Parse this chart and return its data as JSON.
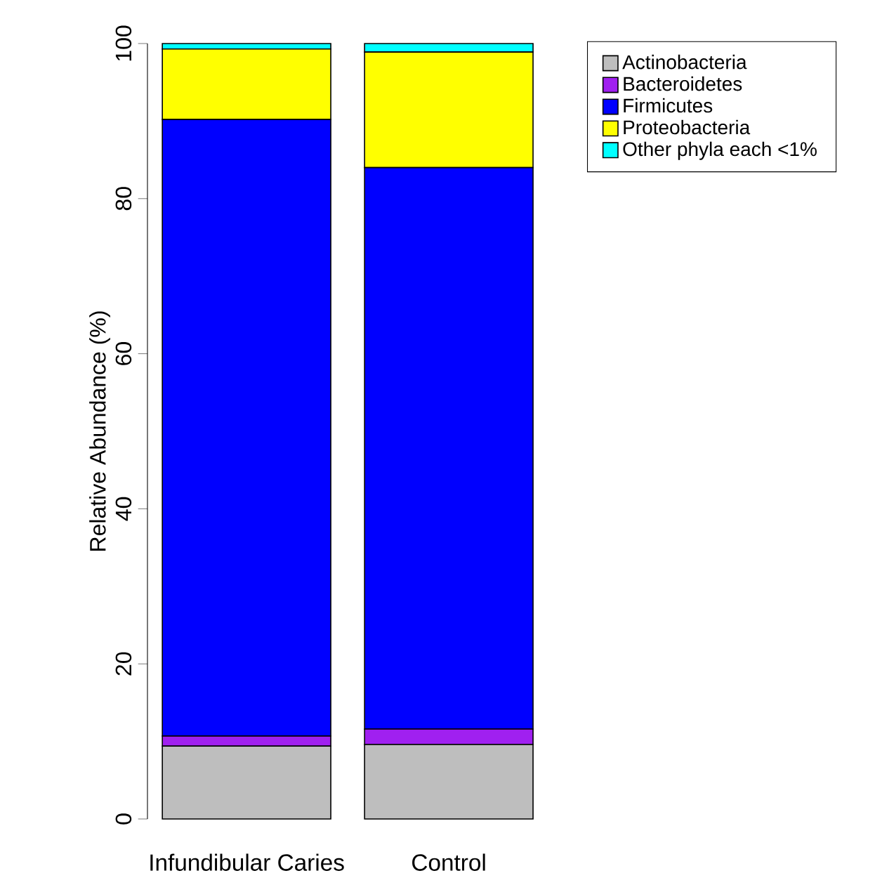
{
  "chart_data": {
    "type": "bar",
    "stacked": true,
    "ylabel": "Relative Abundance (%)",
    "categories": [
      "Infundibular Caries",
      "Control"
    ],
    "series": [
      {
        "name": "Actinobacteria",
        "color": "#bebebe",
        "values": [
          9.4,
          9.6
        ]
      },
      {
        "name": "Bacteroidetes",
        "color": "#a020f0",
        "values": [
          1.3,
          2.0
        ]
      },
      {
        "name": "Firmicutes",
        "color": "#0000ff",
        "values": [
          79.5,
          72.4
        ]
      },
      {
        "name": "Proteobacteria",
        "color": "#ffff00",
        "values": [
          9.1,
          14.9
        ]
      },
      {
        "name": "Other phyla each <1%",
        "color": "#00ffff",
        "values": [
          0.7,
          1.1
        ]
      }
    ],
    "ylim": [
      0,
      100
    ],
    "yticks": [
      0,
      20,
      40,
      60,
      80,
      100
    ],
    "legend": "top right"
  }
}
